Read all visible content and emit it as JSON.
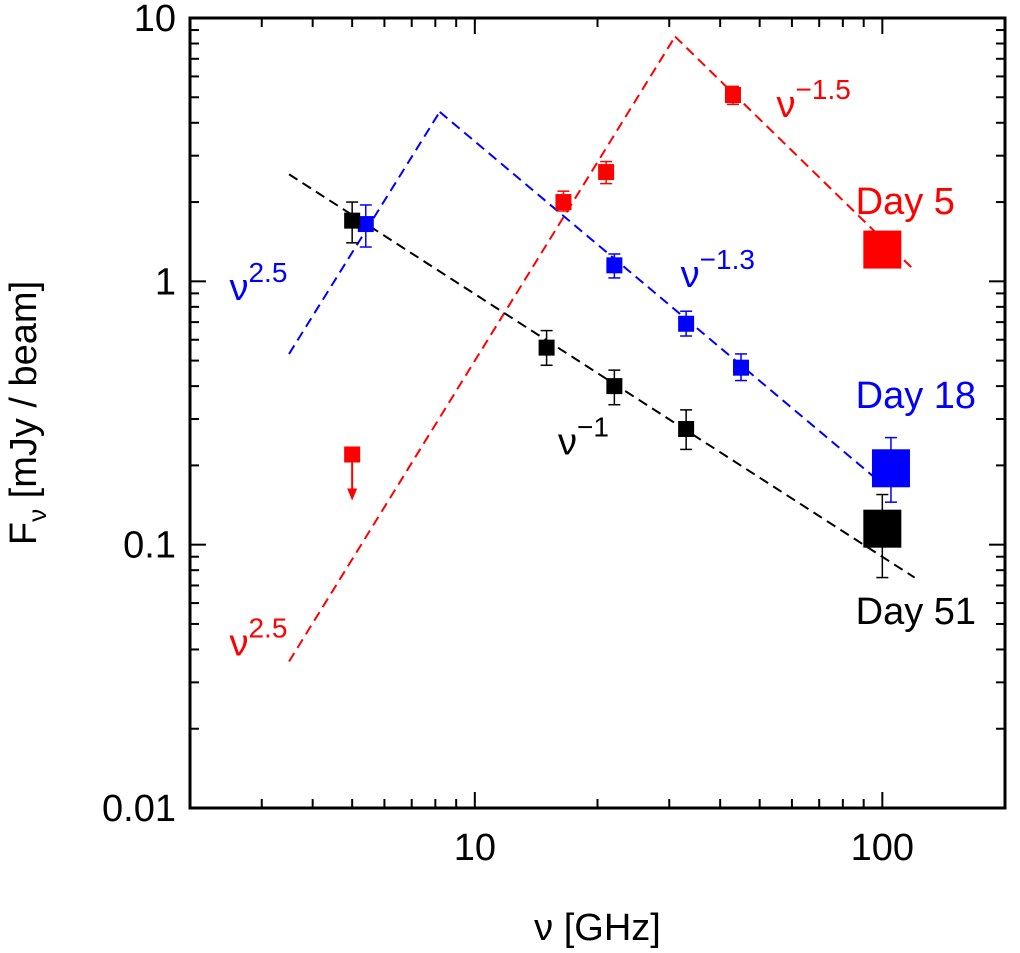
{
  "chart_data": {
    "type": "scatter",
    "xscale": "log",
    "yscale": "log",
    "xlim": [
      2,
      200
    ],
    "ylim": [
      0.01,
      10
    ],
    "xlabel": "ν [GHz]",
    "ylabel_main": "F",
    "ylabel_sub": "ν",
    "ylabel_rest": " [mJy / beam]",
    "xticks": [
      {
        "value": 10,
        "label": "10"
      },
      {
        "value": 100,
        "label": "100"
      }
    ],
    "yticks": [
      {
        "value": 0.01,
        "label": "0.01"
      },
      {
        "value": 0.1,
        "label": "0.1"
      },
      {
        "value": 1,
        "label": "1"
      },
      {
        "value": 10,
        "label": "10"
      }
    ],
    "colors": {
      "day5": "#ff0000",
      "day18": "#0000ff",
      "day51": "#000000"
    },
    "series": [
      {
        "id": "day5",
        "name": "Day 5",
        "color": "#ff0000",
        "points": [
          {
            "x": 16.5,
            "y": 2.0,
            "err_lo": 0.15,
            "err_hi": 0.2
          },
          {
            "x": 21,
            "y": 2.6,
            "err_lo": 0.25,
            "err_hi": 0.25
          },
          {
            "x": 43,
            "y": 5.1,
            "err_lo": 0.4,
            "err_hi": 0.4
          },
          {
            "x": 100,
            "y": 1.32,
            "err_lo": 0.1,
            "err_hi": 0.1,
            "large": true
          }
        ],
        "upper_limits": [
          {
            "x": 5,
            "y": 0.22
          }
        ]
      },
      {
        "id": "day18",
        "name": "Day 18",
        "color": "#0000ff",
        "points": [
          {
            "x": 5.4,
            "y": 1.65,
            "err_lo": 0.3,
            "err_hi": 0.3
          },
          {
            "x": 22,
            "y": 1.15,
            "err_lo": 0.12,
            "err_hi": 0.12
          },
          {
            "x": 33,
            "y": 0.69,
            "err_lo": 0.07,
            "err_hi": 0.08
          },
          {
            "x": 45,
            "y": 0.47,
            "err_lo": 0.05,
            "err_hi": 0.06
          },
          {
            "x": 105,
            "y": 0.195,
            "err_lo": 0.05,
            "err_hi": 0.06,
            "large": true
          }
        ],
        "upper_limits": []
      },
      {
        "id": "day51",
        "name": "Day 51",
        "color": "#000000",
        "points": [
          {
            "x": 5,
            "y": 1.7,
            "err_lo": 0.3,
            "err_hi": 0.3
          },
          {
            "x": 15,
            "y": 0.56,
            "err_lo": 0.08,
            "err_hi": 0.09
          },
          {
            "x": 22,
            "y": 0.4,
            "err_lo": 0.06,
            "err_hi": 0.06
          },
          {
            "x": 33,
            "y": 0.275,
            "err_lo": 0.045,
            "err_hi": 0.05
          },
          {
            "x": 100,
            "y": 0.115,
            "err_lo": 0.04,
            "err_hi": 0.04,
            "large": true
          }
        ],
        "upper_limits": []
      }
    ],
    "fit_lines": [
      {
        "id": "red-rise",
        "color": "#ff0000",
        "x0": 3.5,
        "y0": 0.036,
        "x1": 31,
        "y1": 8.5
      },
      {
        "id": "red-fall",
        "color": "#ff0000",
        "x0": 31,
        "y0": 8.5,
        "x1": 120,
        "y1": 1.1
      },
      {
        "id": "blue-rise",
        "color": "#0000ff",
        "x0": 3.5,
        "y0": 0.53,
        "x1": 8.2,
        "y1": 4.4
      },
      {
        "id": "blue-fall",
        "color": "#0000ff",
        "x0": 8.2,
        "y0": 4.4,
        "x1": 100,
        "y1": 0.17
      },
      {
        "id": "black-fall",
        "color": "#000000",
        "x0": 3.5,
        "y0": 2.55,
        "x1": 120,
        "y1": 0.075
      }
    ],
    "annotations": [
      {
        "id": "nu-minus-1-5",
        "base": "ν",
        "sup": "−1.5",
        "color": "#ff0000",
        "x": 55,
        "y": 4.2
      },
      {
        "id": "nu-minus-1-3",
        "base": "ν",
        "sup": "−1.3",
        "color": "#0000ff",
        "x": 32,
        "y": 0.95
      },
      {
        "id": "nu-minus-1",
        "base": "ν",
        "sup": "−1",
        "color": "#000000",
        "x": 16,
        "y": 0.22
      },
      {
        "id": "nu-2-5-blue",
        "base": "ν",
        "sup": "2.5",
        "color": "#0000ff",
        "x": 2.5,
        "y": 0.85
      },
      {
        "id": "nu-2-5-red",
        "base": "ν",
        "sup": "2.5",
        "color": "#ff0000",
        "x": 2.5,
        "y": 0.038
      },
      {
        "id": "label-day5",
        "text": "Day 5",
        "color": "#ff0000",
        "x": 86,
        "y": 1.8
      },
      {
        "id": "label-day18",
        "text": "Day 18",
        "color": "#0000ff",
        "x": 86,
        "y": 0.33
      },
      {
        "id": "label-day51",
        "text": "Day 51",
        "color": "#000000",
        "x": 86,
        "y": 0.05
      }
    ]
  }
}
